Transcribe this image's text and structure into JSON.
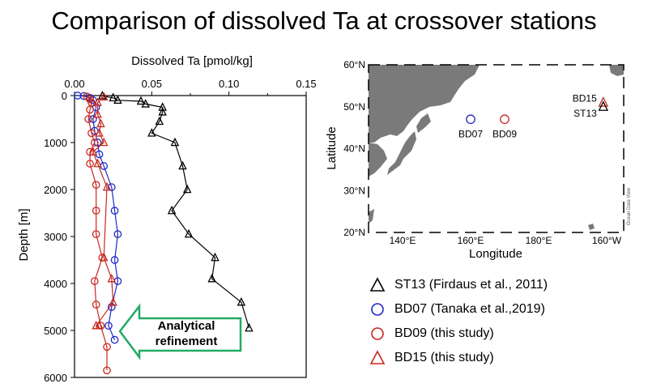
{
  "title": "Comparison of dissolved Ta at crossover stations",
  "chart_data": [
    {
      "type": "line",
      "xlabel": "Dissolved Ta [pmol/kg]",
      "ylabel": "Depth [m]",
      "xlim": [
        0,
        0.15
      ],
      "ylim": [
        6000,
        0
      ],
      "y_inverted": true,
      "x_ticks": [
        "0.00",
        "0.05",
        "0.10",
        "0.15"
      ],
      "y_ticks": [
        "0",
        "1000",
        "2000",
        "3000",
        "4000",
        "5000",
        "6000"
      ],
      "grid": false,
      "series": [
        {
          "name": "ST13 (Firdaus et al., 2011)",
          "color": "#000000",
          "marker": "triangle",
          "points": [
            [
              0.018,
              5
            ],
            [
              0.025,
              50
            ],
            [
              0.028,
              100
            ],
            [
              0.043,
              120
            ],
            [
              0.046,
              180
            ],
            [
              0.057,
              250
            ],
            [
              0.057,
              350
            ],
            [
              0.055,
              550
            ],
            [
              0.05,
              800
            ],
            [
              0.065,
              1000
            ],
            [
              0.07,
              1500
            ],
            [
              0.073,
              2000
            ],
            [
              0.063,
              2450
            ],
            [
              0.074,
              2950
            ],
            [
              0.091,
              3450
            ],
            [
              0.089,
              3900
            ],
            [
              0.108,
              4400
            ],
            [
              0.113,
              4950
            ]
          ]
        },
        {
          "name": "BD07 (Tanaka et al.,2019)",
          "color": "#1e28c8",
          "marker": "circle",
          "points": [
            [
              0.002,
              0
            ],
            [
              0.006,
              10
            ],
            [
              0.01,
              50
            ],
            [
              0.012,
              100
            ],
            [
              0.014,
              250
            ],
            [
              0.012,
              500
            ],
            [
              0.013,
              750
            ],
            [
              0.015,
              1000
            ],
            [
              0.016,
              1250
            ],
            [
              0.019,
              1500
            ],
            [
              0.024,
              1950
            ],
            [
              0.026,
              2450
            ],
            [
              0.028,
              2950
            ],
            [
              0.026,
              3500
            ],
            [
              0.028,
              3950
            ],
            [
              0.024,
              4500
            ],
            [
              0.022,
              4900
            ],
            [
              0.026,
              5200
            ]
          ]
        },
        {
          "name": "BD09 (this study)",
          "color": "#c8281e",
          "marker": "circle",
          "points": [
            [
              0.008,
              20
            ],
            [
              0.01,
              80
            ],
            [
              0.011,
              150
            ],
            [
              0.01,
              300
            ],
            [
              0.009,
              500
            ],
            [
              0.011,
              800
            ],
            [
              0.013,
              1000
            ],
            [
              0.01,
              1200
            ],
            [
              0.01,
              1450
            ],
            [
              0.014,
              1900
            ],
            [
              0.014,
              2450
            ],
            [
              0.014,
              2950
            ],
            [
              0.018,
              3450
            ],
            [
              0.013,
              3950
            ],
            [
              0.014,
              4450
            ],
            [
              0.017,
              4900
            ],
            [
              0.021,
              5350
            ],
            [
              0.021,
              5850
            ]
          ]
        },
        {
          "name": "BD15 (this study)",
          "color": "#c8281e",
          "marker": "triangle",
          "points": [
            [
              0.019,
              30
            ],
            [
              0.015,
              150
            ],
            [
              0.015,
              400
            ],
            [
              0.017,
              600
            ],
            [
              0.016,
              800
            ],
            [
              0.019,
              1000
            ],
            [
              0.012,
              1200
            ],
            [
              0.015,
              1450
            ],
            [
              0.021,
              1950
            ],
            [
              0.019,
              3450
            ],
            [
              0.024,
              3900
            ],
            [
              0.025,
              4400
            ],
            [
              0.014,
              4900
            ],
            [
              0.016,
              4900
            ]
          ]
        }
      ],
      "annotation": {
        "label_line1": "Analytical",
        "label_line2": "refinement",
        "arrow_color": "#22aa66"
      }
    },
    {
      "type": "scatter",
      "chart_kind": "map",
      "xlabel": "Longitude",
      "ylabel": "Latitude",
      "xlim": [
        130,
        205
      ],
      "ylim": [
        20,
        60
      ],
      "x_ticks": [
        "140°E",
        "160°E",
        "180°E",
        "160°W"
      ],
      "y_ticks": [
        "20°N",
        "30°N",
        "40°N",
        "50°N",
        "60°N"
      ],
      "watermark": "Ocean Data View",
      "stations": [
        {
          "name": "BD07",
          "lon": 160,
          "lat": 47,
          "marker": "circle",
          "color": "#1e28c8"
        },
        {
          "name": "BD09",
          "lon": 170,
          "lat": 47,
          "marker": "circle",
          "color": "#c8281e"
        },
        {
          "name": "BD15",
          "lon": 199,
          "lat": 51,
          "marker": "triangle",
          "color": "#c8281e"
        },
        {
          "name": "ST13",
          "lon": 199,
          "lat": 50,
          "marker": "triangle",
          "color": "#000000"
        }
      ]
    }
  ],
  "legend": [
    {
      "label": "ST13 (Firdaus et al., 2011)",
      "marker": "triangle",
      "color": "#000000"
    },
    {
      "label": "BD07 (Tanaka et al.,2019)",
      "marker": "circle",
      "color": "#1e28c8"
    },
    {
      "label": "BD09 (this study)",
      "marker": "circle",
      "color": "#c8281e"
    },
    {
      "label": "BD15 (this study)",
      "marker": "triangle",
      "color": "#c8281e"
    }
  ]
}
